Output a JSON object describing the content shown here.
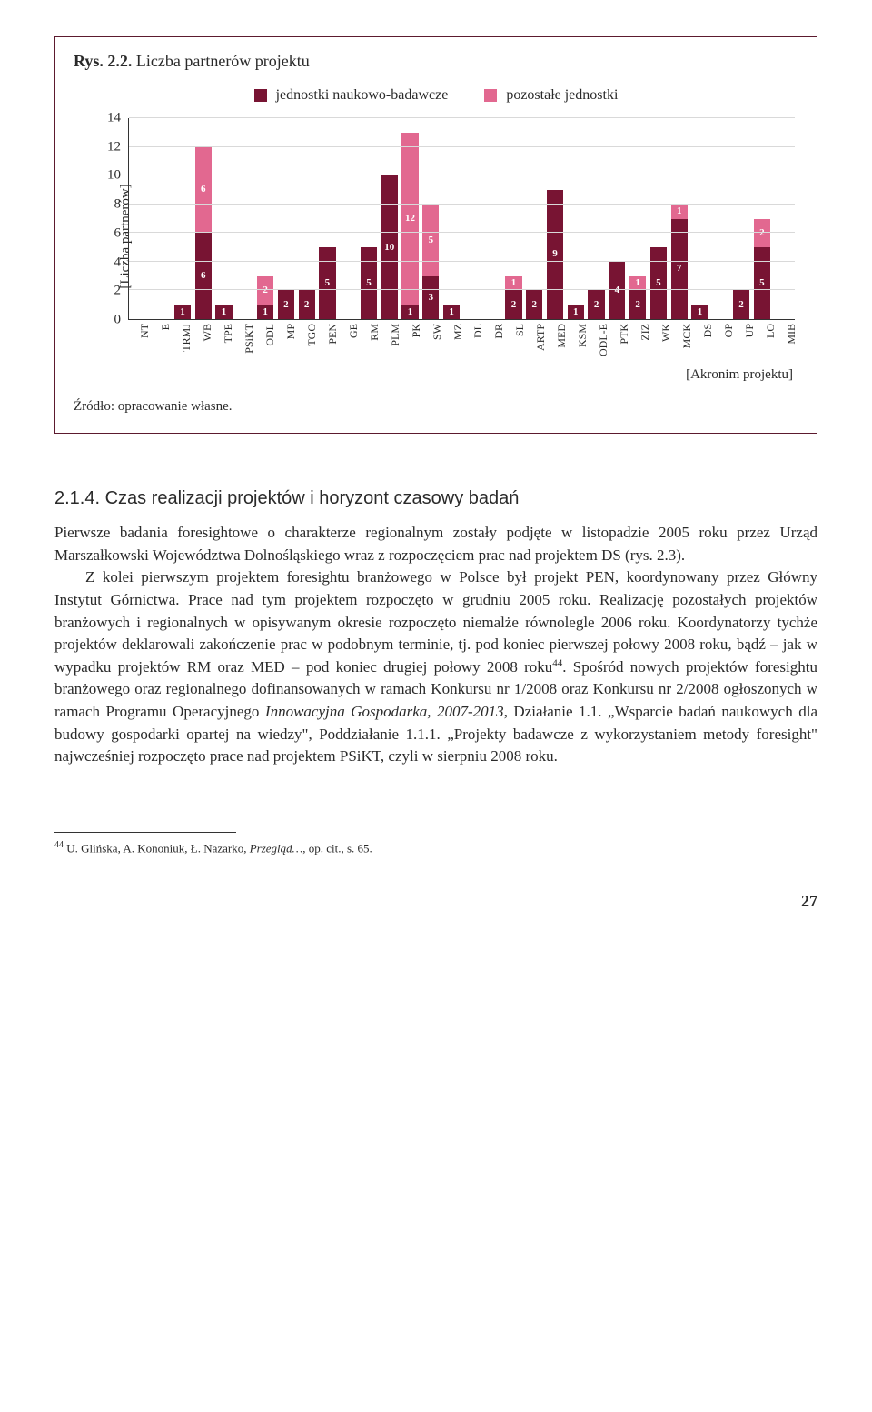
{
  "figure": {
    "title_prefix": "Rys. 2.2.",
    "title_rest": " Liczba partnerów projektu",
    "legend": {
      "series1": {
        "label": "jednostki naukowo-badawcze",
        "color": "#781433"
      },
      "series2": {
        "label": "pozostałe jednostki",
        "color": "#e26890"
      }
    },
    "y_axis": {
      "title": "[Liczba partnerów]",
      "min": 0,
      "max": 14,
      "step": 2,
      "ticks": [
        0,
        2,
        4,
        6,
        8,
        10,
        12,
        14
      ]
    },
    "x_axis": {
      "title": "[Akronim projektu]"
    },
    "categories": [
      "NT",
      "E",
      "TRMJ",
      "WB",
      "TPE",
      "PSiKT",
      "ODL",
      "MP",
      "TGO",
      "PEN",
      "GE",
      "RM",
      "PLM",
      "PK",
      "SW",
      "MZ",
      "DL",
      "DR",
      "SL",
      "ARTP",
      "MED",
      "KSM",
      "ODL-E",
      "PTK",
      "ZIZ",
      "WK",
      "MCK",
      "DS",
      "OP",
      "UP",
      "LO",
      "MIB"
    ],
    "data": [
      {
        "s1": 0,
        "s2": 0
      },
      {
        "s1": 0,
        "s2": 0
      },
      {
        "s1": 1,
        "s2": 0
      },
      {
        "s1": 6,
        "s2": 6
      },
      {
        "s1": 1,
        "s2": 0
      },
      {
        "s1": 0,
        "s2": 0
      },
      {
        "s1": 1,
        "s2": 2
      },
      {
        "s1": 2,
        "s2": 0
      },
      {
        "s1": 2,
        "s2": 0
      },
      {
        "s1": 5,
        "s2": 0
      },
      {
        "s1": 0,
        "s2": 0
      },
      {
        "s1": 5,
        "s2": 0
      },
      {
        "s1": 10,
        "s2": 0
      },
      {
        "s1": 1,
        "s2": 12
      },
      {
        "s1": 3,
        "s2": 5
      },
      {
        "s1": 1,
        "s2": 0
      },
      {
        "s1": 0,
        "s2": 0
      },
      {
        "s1": 0,
        "s2": 0
      },
      {
        "s1": 2,
        "s2": 1
      },
      {
        "s1": 2,
        "s2": 0
      },
      {
        "s1": 9,
        "s2": 0
      },
      {
        "s1": 1,
        "s2": 0
      },
      {
        "s1": 2,
        "s2": 0
      },
      {
        "s1": 4,
        "s2": 0
      },
      {
        "s1": 2,
        "s2": 1
      },
      {
        "s1": 5,
        "s2": 0
      },
      {
        "s1": 7,
        "s2": 1
      },
      {
        "s1": 1,
        "s2": 0
      },
      {
        "s1": 0,
        "s2": 0
      },
      {
        "s1": 2,
        "s2": 0
      },
      {
        "s1": 5,
        "s2": 2
      },
      {
        "s1": 0,
        "s2": 0
      }
    ],
    "source": "Źródło: opracowanie własne."
  },
  "section": {
    "number": "2.1.4.",
    "title": "Czas realizacji projektów i horyzont czasowy badań"
  },
  "body": {
    "p1": "Pierwsze badania foresightowe o charakterze regionalnym zostały podjęte w listopadzie 2005 roku przez Urząd Marszałkowski Województwa Dolnośląskiego wraz z rozpoczęciem prac nad projektem DS (rys. 2.3).",
    "p2a": "Z kolei pierwszym projektem foresightu branżowego w Polsce był projekt PEN, koordynowany przez Główny Instytut Górnictwa. Prace nad tym projektem rozpoczęto w grudniu 2005 roku. Realizację pozostałych projektów branżowych i regionalnych w opisywanym okresie rozpoczęto niemalże równolegle 2006 roku. Koordynatorzy tychże projektów deklarowali zakończenie prac w podobnym terminie, tj. pod koniec pierwszej połowy 2008 roku, bądź – jak w wypadku projektów RM oraz MED – pod koniec drugiej połowy 2008 roku",
    "p2_fnref": "44",
    "p2b": ". Spośród nowych projektów foresightu branżowego oraz regionalnego dofinansowanych w ramach Konkursu nr 1/2008 oraz Konkursu nr 2/2008 ogłoszonych w ramach Programu Operacyjnego ",
    "p2_ital": "Innowacyjna Gospodarka, 2007-2013",
    "p2c": ", Działanie 1.1. „Wsparcie badań naukowych dla budowy gospodarki opartej na wiedzy\", Poddziałanie 1.1.1. „Projekty badawcze z wykorzystaniem metody foresight\" najwcześniej rozpoczęto prace nad projektem PSiKT, czyli w sierpniu 2008 roku."
  },
  "footnote": {
    "num": "44",
    "text_a": " U. Glińska, A. Kononiuk, Ł. Nazarko, ",
    "text_ital": "Przegląd…",
    "text_b": ", op. cit., s. 65."
  },
  "page_number": "27",
  "colors": {
    "dark": "#781433",
    "light": "#e26890",
    "grid": "#d9d9d9"
  }
}
